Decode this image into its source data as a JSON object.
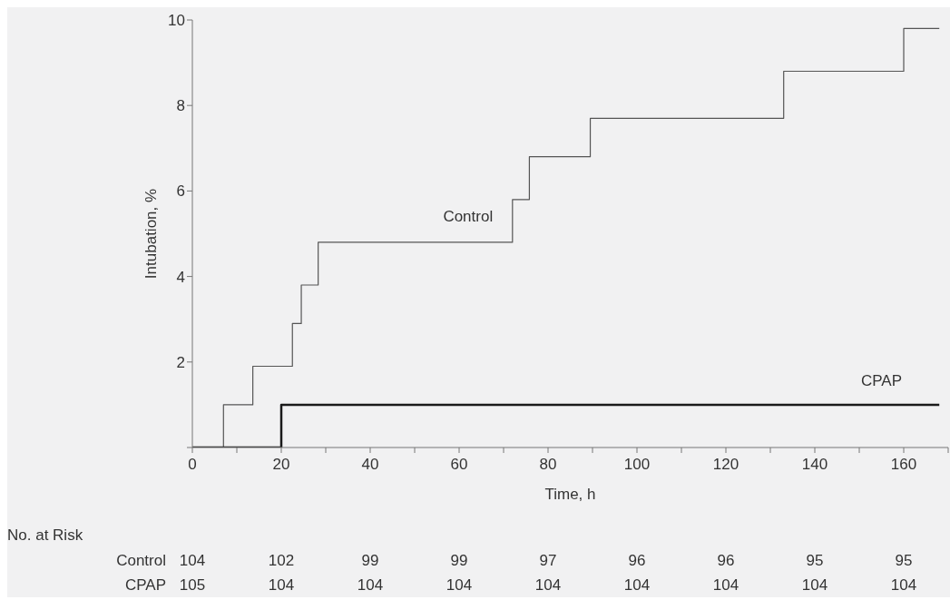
{
  "chart_data": {
    "type": "step",
    "xlabel": "Time, h",
    "ylabel": "Intubation, %",
    "series": [
      {
        "name": "Control",
        "color": "#555555",
        "x": [
          0,
          7,
          13.6,
          22.5,
          24.5,
          28.3,
          72,
          75.8,
          89.5,
          133,
          160,
          168
        ],
        "values": [
          0,
          1.0,
          1.9,
          2.9,
          3.8,
          4.8,
          5.8,
          6.8,
          7.7,
          8.8,
          9.8,
          9.8
        ]
      },
      {
        "name": "CPAP",
        "color": "#1a1a1a",
        "x": [
          0,
          20,
          168
        ],
        "values": [
          0,
          1.0,
          1.0
        ]
      }
    ],
    "xlim": [
      0,
      170
    ],
    "xticks": [
      0,
      {
        "value": 10,
        "label": null
      },
      20,
      {
        "value": 30,
        "label": null
      },
      40,
      {
        "value": 50,
        "label": null
      },
      60,
      {
        "value": 70,
        "label": null
      },
      80,
      {
        "value": 90,
        "label": null
      },
      100,
      {
        "value": 110,
        "label": null
      },
      120,
      {
        "value": 130,
        "label": null
      },
      140,
      {
        "value": 150,
        "label": null
      },
      160,
      {
        "value": 170,
        "label": null
      }
    ],
    "ylim": [
      0,
      10
    ],
    "yticks": [
      {
        "value": 0,
        "label": null
      },
      2,
      4,
      6,
      8,
      10
    ],
    "grid": false,
    "line_style": "solid",
    "annotations": [
      "No. at Risk",
      "Control 104 102 99 99 97 96 96 95 95",
      "CPAP 105 104 104 104 104 104 104 104 104"
    ]
  }
}
